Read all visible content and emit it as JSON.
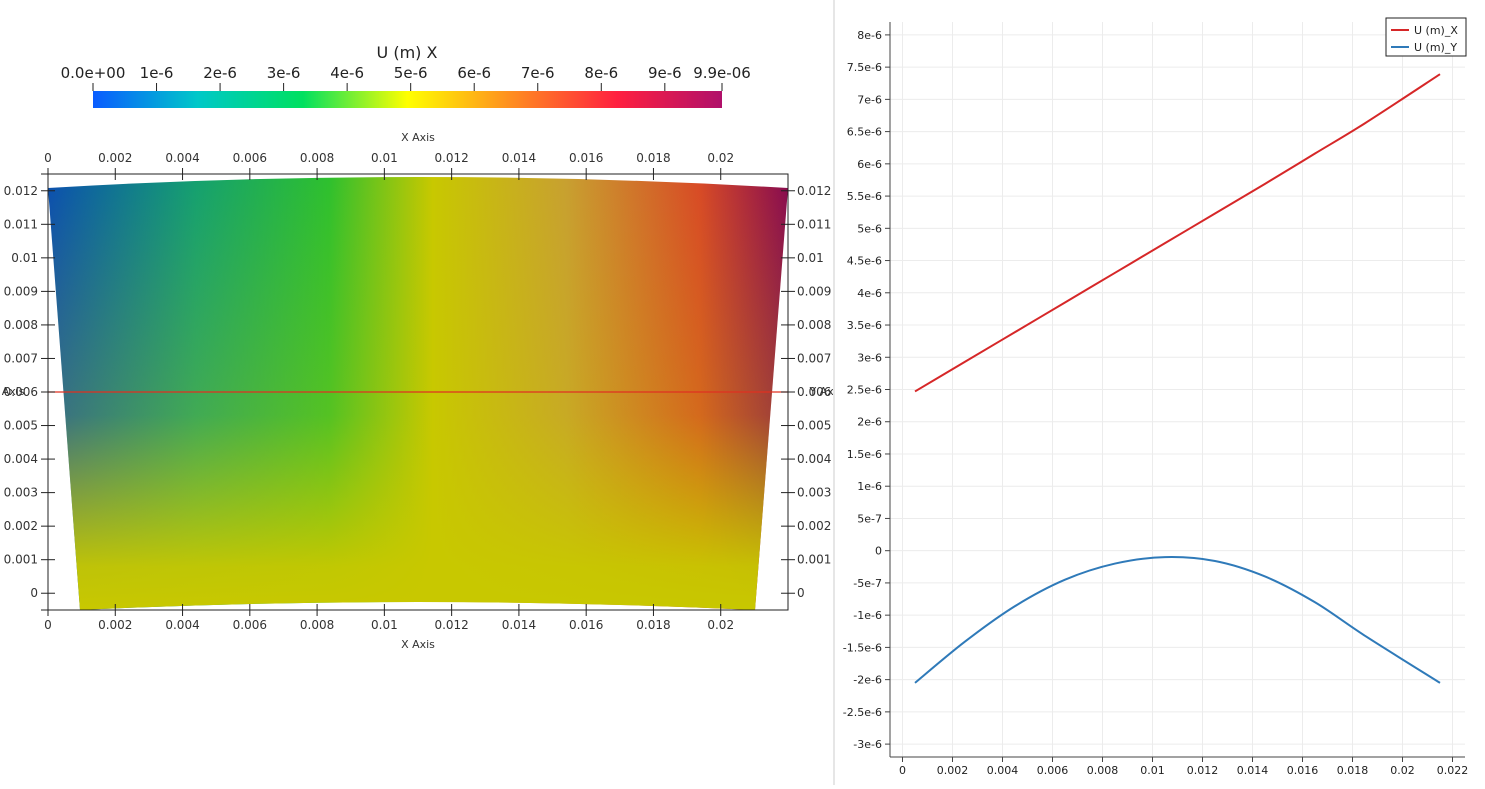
{
  "render_view": {
    "colorbar": {
      "title": "U (m) X",
      "ticks": [
        "0.0e+00",
        "1e-6",
        "2e-6",
        "3e-6",
        "4e-6",
        "5e-6",
        "6e-6",
        "7e-6",
        "8e-6",
        "9e-6",
        "9.9e-06"
      ],
      "range": [
        0,
        9.9e-06
      ],
      "colors": [
        "#0a5cff",
        "#00c8c8",
        "#00e060",
        "#ffff00",
        "#ff8c20",
        "#ff2040",
        "#b0106a"
      ]
    },
    "axes": {
      "top_title": "X Axis",
      "bottom_title": "X Axis",
      "left_title": "Y Axis",
      "right_title": "Y Axis",
      "x_ticks": [
        "0",
        "0.002",
        "0.004",
        "0.006",
        "0.008",
        "0.01",
        "0.012",
        "0.014",
        "0.016",
        "0.018",
        "0.02"
      ],
      "y_ticks": [
        "0",
        "0.001",
        "0.002",
        "0.003",
        "0.004",
        "0.005",
        "0.006",
        "0.007",
        "0.008",
        "0.009",
        "0.01",
        "0.011",
        "0.012"
      ],
      "x_range": [
        0,
        0.022
      ],
      "y_range": [
        -0.0005,
        0.0125
      ]
    },
    "probe_line_color": "#e03020",
    "probe_line_y": 0.006
  },
  "chart_data": {
    "type": "line",
    "x": [
      0.0005,
      0.0025,
      0.0045,
      0.0065,
      0.0085,
      0.0105,
      0.0125,
      0.0145,
      0.0165,
      0.0185,
      0.0215
    ],
    "series": [
      {
        "name": "U (m)_X",
        "color": "#d62728",
        "values": [
          2.47e-06,
          2.93e-06,
          3.39e-06,
          3.85e-06,
          4.31e-06,
          4.77e-06,
          5.23e-06,
          5.69e-06,
          6.16e-06,
          6.63e-06,
          7.39e-06
        ]
      },
      {
        "name": "U (m)_Y",
        "color": "#2f7ab9",
        "values": [
          -2.05e-06,
          -1.41e-06,
          -8.6e-07,
          -4.5e-07,
          -2e-07,
          -1e-07,
          -1.6e-07,
          -4e-07,
          -8e-07,
          -1.32e-06,
          -2.05e-06
        ]
      }
    ],
    "x_ticks": [
      "0",
      "0.002",
      "0.004",
      "0.006",
      "0.008",
      "0.01",
      "0.012",
      "0.014",
      "0.016",
      "0.018",
      "0.02",
      "0.022"
    ],
    "y_ticks": [
      "-3e-6",
      "-2.5e-6",
      "-2e-6",
      "-1.5e-6",
      "-1e-6",
      "-5e-7",
      "0",
      "5e-7",
      "1e-6",
      "1.5e-6",
      "2e-6",
      "2.5e-6",
      "3e-6",
      "3.5e-6",
      "4e-6",
      "4.5e-6",
      "5e-6",
      "5.5e-6",
      "6e-6",
      "6.5e-6",
      "7e-6",
      "7.5e-6",
      "8e-6"
    ],
    "xlim": [
      -0.0005,
      0.0225
    ],
    "ylim": [
      -3.2e-06,
      8.2e-06
    ],
    "grid": true,
    "legend_position": "top-right"
  }
}
